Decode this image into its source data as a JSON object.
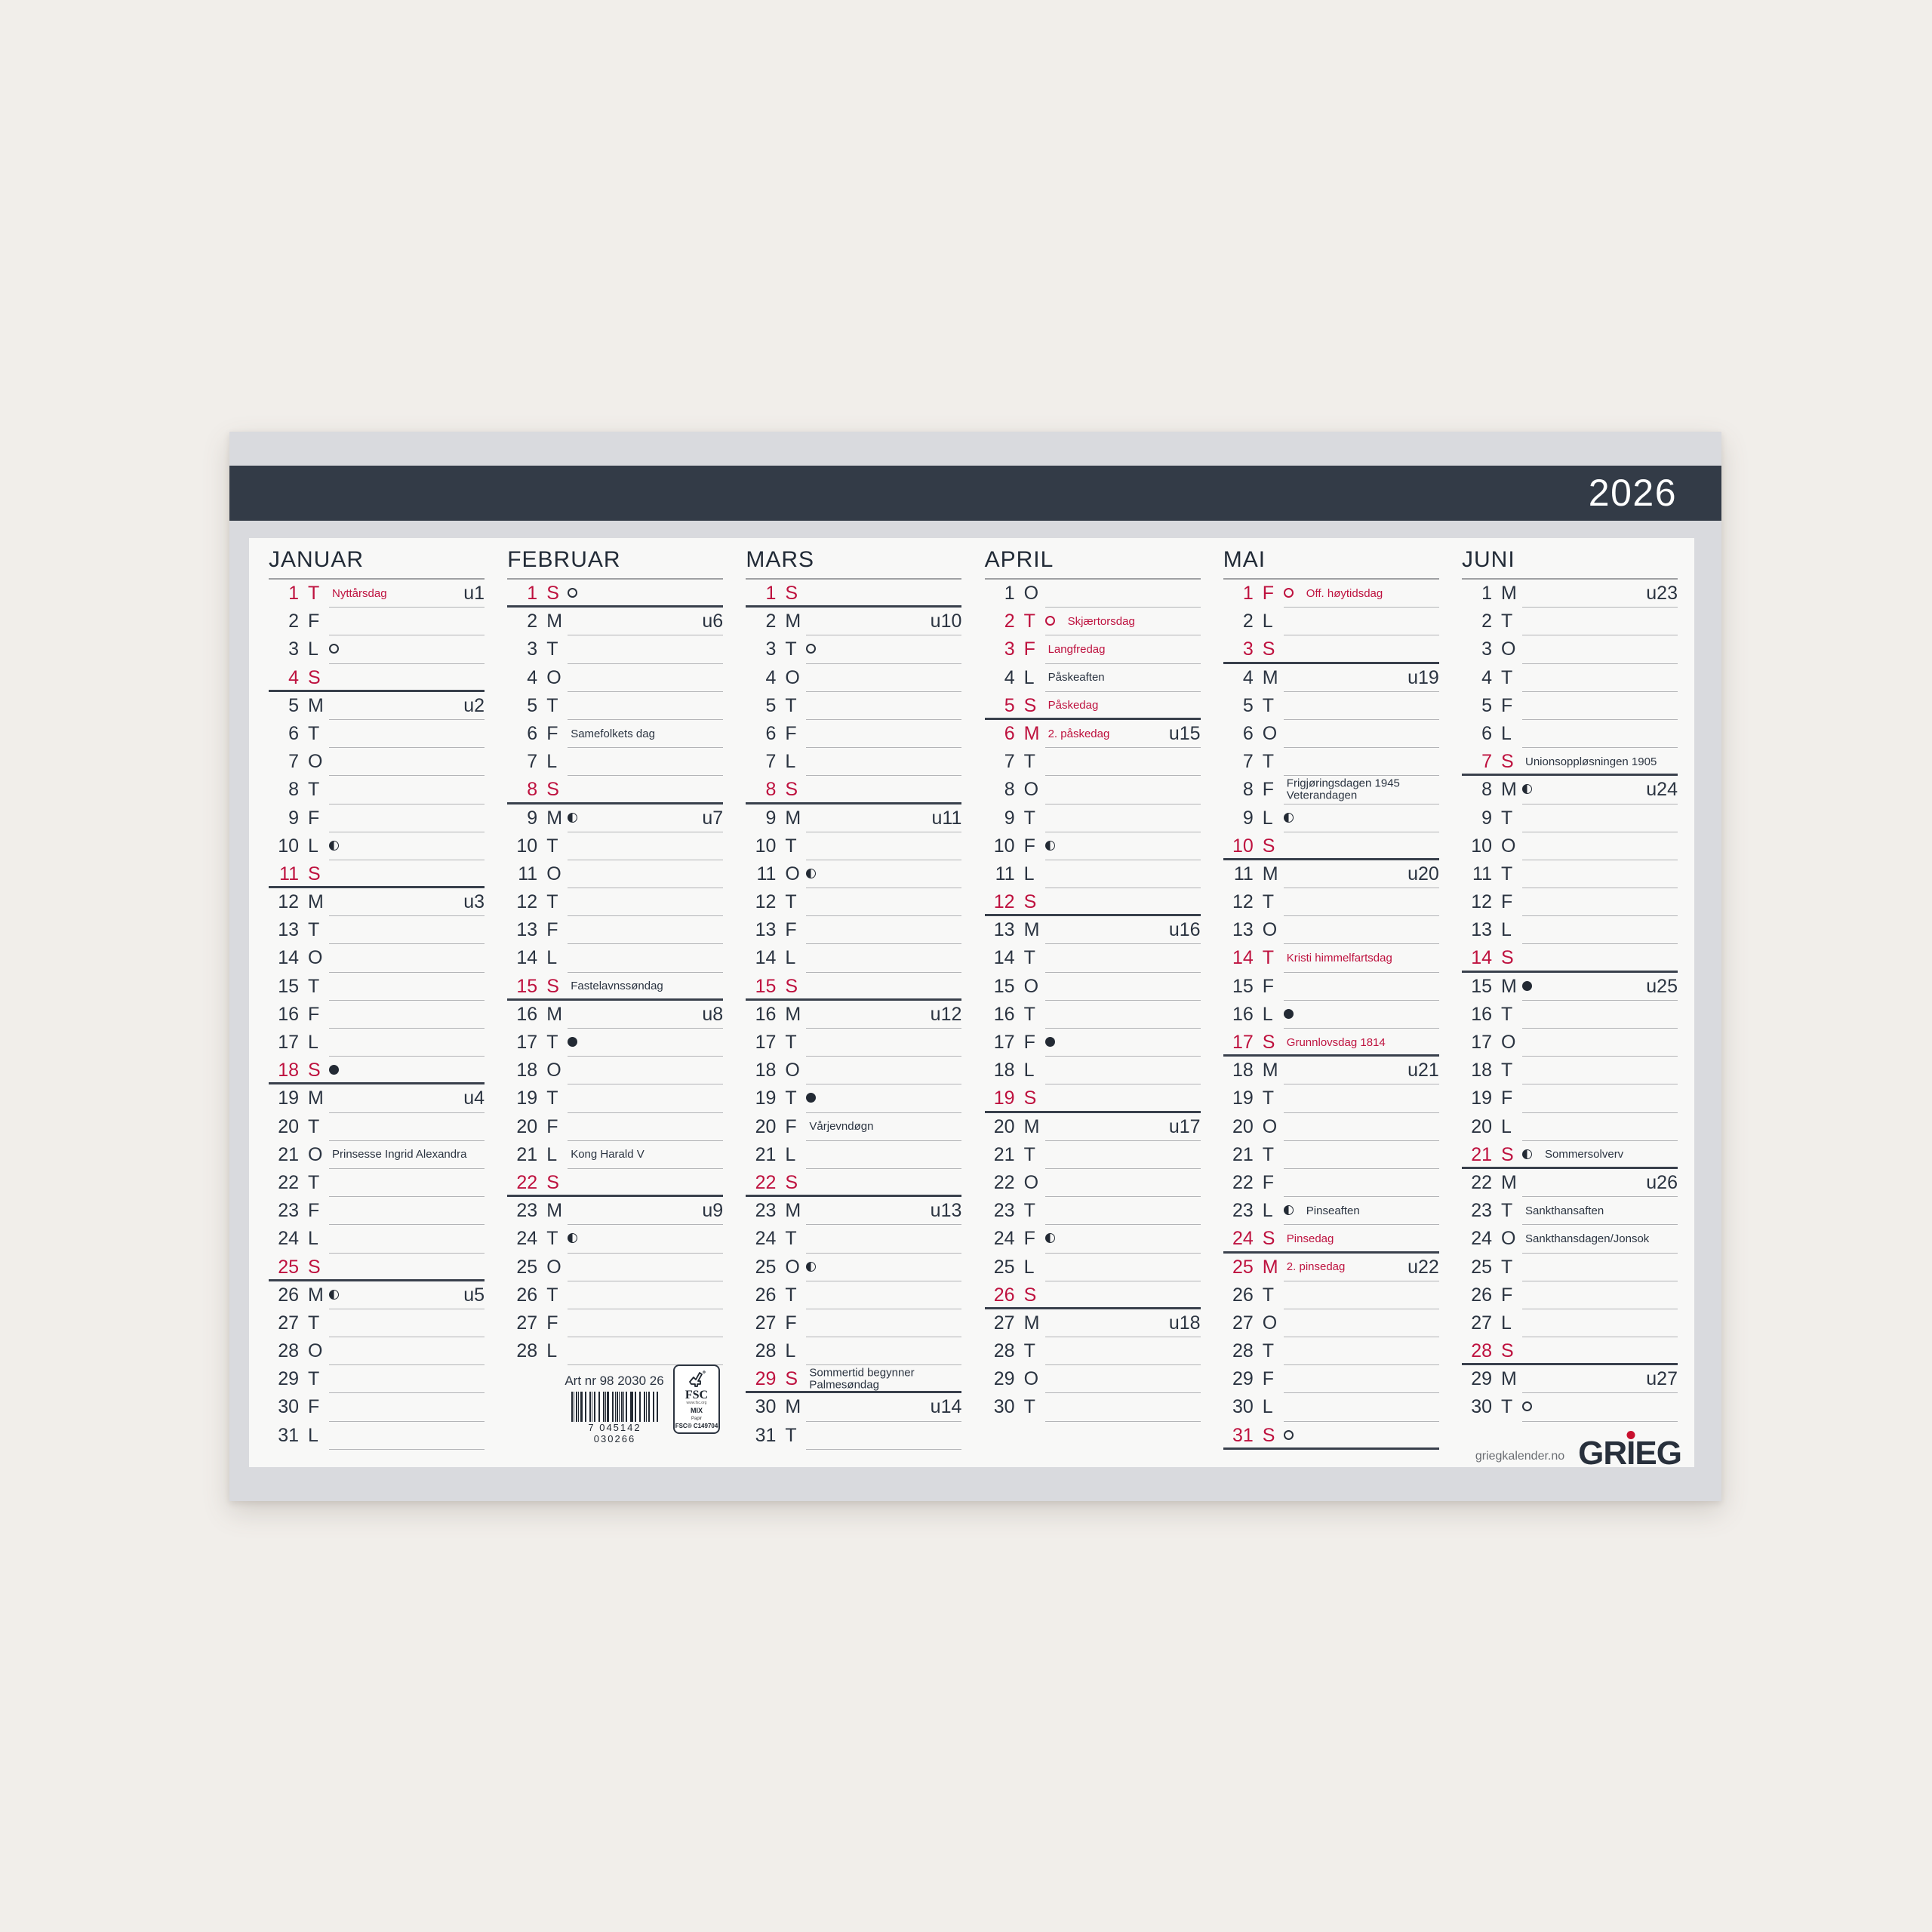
{
  "header": {
    "year": "2026"
  },
  "colors": {
    "accent_red": "#be123f",
    "band_navy": "#333b47",
    "text_dark": "#2b3441",
    "sheet_gray": "#d9dade",
    "paper_white": "#f8f8f7",
    "page_background": "#f1eeea"
  },
  "months": [
    {
      "name": "JANUAR",
      "days": [
        {
          "n": 1,
          "w": "T",
          "red": true,
          "note": "Nyttårsdag",
          "noteRed": true,
          "week": "u1"
        },
        {
          "n": 2,
          "w": "F"
        },
        {
          "n": 3,
          "w": "L",
          "moon": "full"
        },
        {
          "n": 4,
          "w": "S",
          "red": true
        },
        {
          "n": 5,
          "w": "M",
          "week": "u2"
        },
        {
          "n": 6,
          "w": "T"
        },
        {
          "n": 7,
          "w": "O"
        },
        {
          "n": 8,
          "w": "T"
        },
        {
          "n": 9,
          "w": "F"
        },
        {
          "n": 10,
          "w": "L",
          "moon": "half"
        },
        {
          "n": 11,
          "w": "S",
          "red": true
        },
        {
          "n": 12,
          "w": "M",
          "week": "u3"
        },
        {
          "n": 13,
          "w": "T"
        },
        {
          "n": 14,
          "w": "O"
        },
        {
          "n": 15,
          "w": "T"
        },
        {
          "n": 16,
          "w": "F"
        },
        {
          "n": 17,
          "w": "L"
        },
        {
          "n": 18,
          "w": "S",
          "red": true,
          "moon": "new"
        },
        {
          "n": 19,
          "w": "M",
          "week": "u4"
        },
        {
          "n": 20,
          "w": "T"
        },
        {
          "n": 21,
          "w": "O",
          "note": "Prinsesse Ingrid Alexandra"
        },
        {
          "n": 22,
          "w": "T"
        },
        {
          "n": 23,
          "w": "F"
        },
        {
          "n": 24,
          "w": "L"
        },
        {
          "n": 25,
          "w": "S",
          "red": true
        },
        {
          "n": 26,
          "w": "M",
          "moon": "half",
          "week": "u5"
        },
        {
          "n": 27,
          "w": "T"
        },
        {
          "n": 28,
          "w": "O"
        },
        {
          "n": 29,
          "w": "T"
        },
        {
          "n": 30,
          "w": "F"
        },
        {
          "n": 31,
          "w": "L"
        }
      ]
    },
    {
      "name": "FEBRUAR",
      "days": [
        {
          "n": 1,
          "w": "S",
          "red": true,
          "moon": "full"
        },
        {
          "n": 2,
          "w": "M",
          "week": "u6"
        },
        {
          "n": 3,
          "w": "T"
        },
        {
          "n": 4,
          "w": "O"
        },
        {
          "n": 5,
          "w": "T"
        },
        {
          "n": 6,
          "w": "F",
          "note": "Samefolkets dag"
        },
        {
          "n": 7,
          "w": "L"
        },
        {
          "n": 8,
          "w": "S",
          "red": true
        },
        {
          "n": 9,
          "w": "M",
          "moon": "half",
          "week": "u7"
        },
        {
          "n": 10,
          "w": "T"
        },
        {
          "n": 11,
          "w": "O"
        },
        {
          "n": 12,
          "w": "T"
        },
        {
          "n": 13,
          "w": "F"
        },
        {
          "n": 14,
          "w": "L"
        },
        {
          "n": 15,
          "w": "S",
          "red": true,
          "note": "Fastelavnssøndag"
        },
        {
          "n": 16,
          "w": "M",
          "week": "u8"
        },
        {
          "n": 17,
          "w": "T",
          "moon": "new"
        },
        {
          "n": 18,
          "w": "O"
        },
        {
          "n": 19,
          "w": "T"
        },
        {
          "n": 20,
          "w": "F"
        },
        {
          "n": 21,
          "w": "L",
          "note": "Kong Harald V"
        },
        {
          "n": 22,
          "w": "S",
          "red": true
        },
        {
          "n": 23,
          "w": "M",
          "week": "u9"
        },
        {
          "n": 24,
          "w": "T",
          "moon": "half"
        },
        {
          "n": 25,
          "w": "O"
        },
        {
          "n": 26,
          "w": "T"
        },
        {
          "n": 27,
          "w": "F"
        },
        {
          "n": 28,
          "w": "L"
        }
      ]
    },
    {
      "name": "MARS",
      "days": [
        {
          "n": 1,
          "w": "S",
          "red": true
        },
        {
          "n": 2,
          "w": "M",
          "week": "u10"
        },
        {
          "n": 3,
          "w": "T",
          "moon": "full"
        },
        {
          "n": 4,
          "w": "O"
        },
        {
          "n": 5,
          "w": "T"
        },
        {
          "n": 6,
          "w": "F"
        },
        {
          "n": 7,
          "w": "L"
        },
        {
          "n": 8,
          "w": "S",
          "red": true
        },
        {
          "n": 9,
          "w": "M",
          "week": "u11"
        },
        {
          "n": 10,
          "w": "T"
        },
        {
          "n": 11,
          "w": "O",
          "moon": "half"
        },
        {
          "n": 12,
          "w": "T"
        },
        {
          "n": 13,
          "w": "F"
        },
        {
          "n": 14,
          "w": "L"
        },
        {
          "n": 15,
          "w": "S",
          "red": true
        },
        {
          "n": 16,
          "w": "M",
          "week": "u12"
        },
        {
          "n": 17,
          "w": "T"
        },
        {
          "n": 18,
          "w": "O"
        },
        {
          "n": 19,
          "w": "T",
          "moon": "new"
        },
        {
          "n": 20,
          "w": "F",
          "note": "Vårjevndøgn"
        },
        {
          "n": 21,
          "w": "L"
        },
        {
          "n": 22,
          "w": "S",
          "red": true
        },
        {
          "n": 23,
          "w": "M",
          "week": "u13"
        },
        {
          "n": 24,
          "w": "T"
        },
        {
          "n": 25,
          "w": "O",
          "moon": "half"
        },
        {
          "n": 26,
          "w": "T"
        },
        {
          "n": 27,
          "w": "F"
        },
        {
          "n": 28,
          "w": "L"
        },
        {
          "n": 29,
          "w": "S",
          "red": true,
          "note": "Sommertid begynner",
          "note2": "Palmesøndag"
        },
        {
          "n": 30,
          "w": "M",
          "week": "u14"
        },
        {
          "n": 31,
          "w": "T"
        }
      ]
    },
    {
      "name": "APRIL",
      "days": [
        {
          "n": 1,
          "w": "O"
        },
        {
          "n": 2,
          "w": "T",
          "red": true,
          "moon": "full",
          "moonRed": true,
          "note": "Skjærtorsdag",
          "noteRed": true
        },
        {
          "n": 3,
          "w": "F",
          "red": true,
          "note": "Langfredag",
          "noteRed": true
        },
        {
          "n": 4,
          "w": "L",
          "note": "Påskeaften"
        },
        {
          "n": 5,
          "w": "S",
          "red": true,
          "note": "Påskedag",
          "noteRed": true
        },
        {
          "n": 6,
          "w": "M",
          "red": true,
          "note": "2. påskedag",
          "noteRed": true,
          "week": "u15"
        },
        {
          "n": 7,
          "w": "T"
        },
        {
          "n": 8,
          "w": "O"
        },
        {
          "n": 9,
          "w": "T"
        },
        {
          "n": 10,
          "w": "F",
          "moon": "half"
        },
        {
          "n": 11,
          "w": "L"
        },
        {
          "n": 12,
          "w": "S",
          "red": true
        },
        {
          "n": 13,
          "w": "M",
          "week": "u16"
        },
        {
          "n": 14,
          "w": "T"
        },
        {
          "n": 15,
          "w": "O"
        },
        {
          "n": 16,
          "w": "T"
        },
        {
          "n": 17,
          "w": "F",
          "moon": "new"
        },
        {
          "n": 18,
          "w": "L"
        },
        {
          "n": 19,
          "w": "S",
          "red": true
        },
        {
          "n": 20,
          "w": "M",
          "week": "u17"
        },
        {
          "n": 21,
          "w": "T"
        },
        {
          "n": 22,
          "w": "O"
        },
        {
          "n": 23,
          "w": "T"
        },
        {
          "n": 24,
          "w": "F",
          "moon": "half"
        },
        {
          "n": 25,
          "w": "L"
        },
        {
          "n": 26,
          "w": "S",
          "red": true
        },
        {
          "n": 27,
          "w": "M",
          "week": "u18"
        },
        {
          "n": 28,
          "w": "T"
        },
        {
          "n": 29,
          "w": "O"
        },
        {
          "n": 30,
          "w": "T"
        }
      ]
    },
    {
      "name": "MAI",
      "days": [
        {
          "n": 1,
          "w": "F",
          "red": true,
          "moon": "full",
          "moonRed": true,
          "note": "Off. høytidsdag",
          "noteRed": true
        },
        {
          "n": 2,
          "w": "L"
        },
        {
          "n": 3,
          "w": "S",
          "red": true
        },
        {
          "n": 4,
          "w": "M",
          "week": "u19"
        },
        {
          "n": 5,
          "w": "T"
        },
        {
          "n": 6,
          "w": "O"
        },
        {
          "n": 7,
          "w": "T"
        },
        {
          "n": 8,
          "w": "F",
          "note": "Frigjøringsdagen 1945",
          "note2": "Veterandagen"
        },
        {
          "n": 9,
          "w": "L",
          "moon": "half"
        },
        {
          "n": 10,
          "w": "S",
          "red": true
        },
        {
          "n": 11,
          "w": "M",
          "week": "u20"
        },
        {
          "n": 12,
          "w": "T"
        },
        {
          "n": 13,
          "w": "O"
        },
        {
          "n": 14,
          "w": "T",
          "red": true,
          "note": "Kristi himmelfartsdag",
          "noteRed": true
        },
        {
          "n": 15,
          "w": "F"
        },
        {
          "n": 16,
          "w": "L",
          "moon": "new"
        },
        {
          "n": 17,
          "w": "S",
          "red": true,
          "note": "Grunnlovsdag 1814",
          "noteRed": true
        },
        {
          "n": 18,
          "w": "M",
          "week": "u21"
        },
        {
          "n": 19,
          "w": "T"
        },
        {
          "n": 20,
          "w": "O"
        },
        {
          "n": 21,
          "w": "T"
        },
        {
          "n": 22,
          "w": "F"
        },
        {
          "n": 23,
          "w": "L",
          "moon": "half",
          "note": "Pinseaften"
        },
        {
          "n": 24,
          "w": "S",
          "red": true,
          "note": "Pinsedag",
          "noteRed": true
        },
        {
          "n": 25,
          "w": "M",
          "red": true,
          "note": "2. pinsedag",
          "noteRed": true,
          "week": "u22"
        },
        {
          "n": 26,
          "w": "T"
        },
        {
          "n": 27,
          "w": "O"
        },
        {
          "n": 28,
          "w": "T"
        },
        {
          "n": 29,
          "w": "F"
        },
        {
          "n": 30,
          "w": "L"
        },
        {
          "n": 31,
          "w": "S",
          "red": true,
          "moon": "full"
        }
      ]
    },
    {
      "name": "JUNI",
      "days": [
        {
          "n": 1,
          "w": "M",
          "week": "u23"
        },
        {
          "n": 2,
          "w": "T"
        },
        {
          "n": 3,
          "w": "O"
        },
        {
          "n": 4,
          "w": "T"
        },
        {
          "n": 5,
          "w": "F"
        },
        {
          "n": 6,
          "w": "L"
        },
        {
          "n": 7,
          "w": "S",
          "red": true,
          "note": "Unionsoppløsningen 1905"
        },
        {
          "n": 8,
          "w": "M",
          "moon": "half",
          "week": "u24"
        },
        {
          "n": 9,
          "w": "T"
        },
        {
          "n": 10,
          "w": "O"
        },
        {
          "n": 11,
          "w": "T"
        },
        {
          "n": 12,
          "w": "F"
        },
        {
          "n": 13,
          "w": "L"
        },
        {
          "n": 14,
          "w": "S",
          "red": true
        },
        {
          "n": 15,
          "w": "M",
          "moon": "new",
          "week": "u25"
        },
        {
          "n": 16,
          "w": "T"
        },
        {
          "n": 17,
          "w": "O"
        },
        {
          "n": 18,
          "w": "T"
        },
        {
          "n": 19,
          "w": "F"
        },
        {
          "n": 20,
          "w": "L"
        },
        {
          "n": 21,
          "w": "S",
          "red": true,
          "moon": "half",
          "note": "Sommersolverv"
        },
        {
          "n": 22,
          "w": "M",
          "week": "u26"
        },
        {
          "n": 23,
          "w": "T",
          "note": "Sankthansaften"
        },
        {
          "n": 24,
          "w": "O",
          "note": "Sankthansdagen/Jonsok"
        },
        {
          "n": 25,
          "w": "T"
        },
        {
          "n": 26,
          "w": "F"
        },
        {
          "n": 27,
          "w": "L"
        },
        {
          "n": 28,
          "w": "S",
          "red": true
        },
        {
          "n": 29,
          "w": "M",
          "week": "u27"
        },
        {
          "n": 30,
          "w": "T",
          "moon": "full"
        }
      ]
    }
  ],
  "footer": {
    "art_nr": "Art nr 98 2030 26",
    "barcode_digits": "7 045142 030266",
    "fsc": {
      "name": "FSC",
      "url": "www.fsc.org",
      "mix": "MIX",
      "material": "Papir",
      "cert": "FSC® C149704"
    },
    "website": "griegkalender.no",
    "brand": "GRIEG"
  }
}
